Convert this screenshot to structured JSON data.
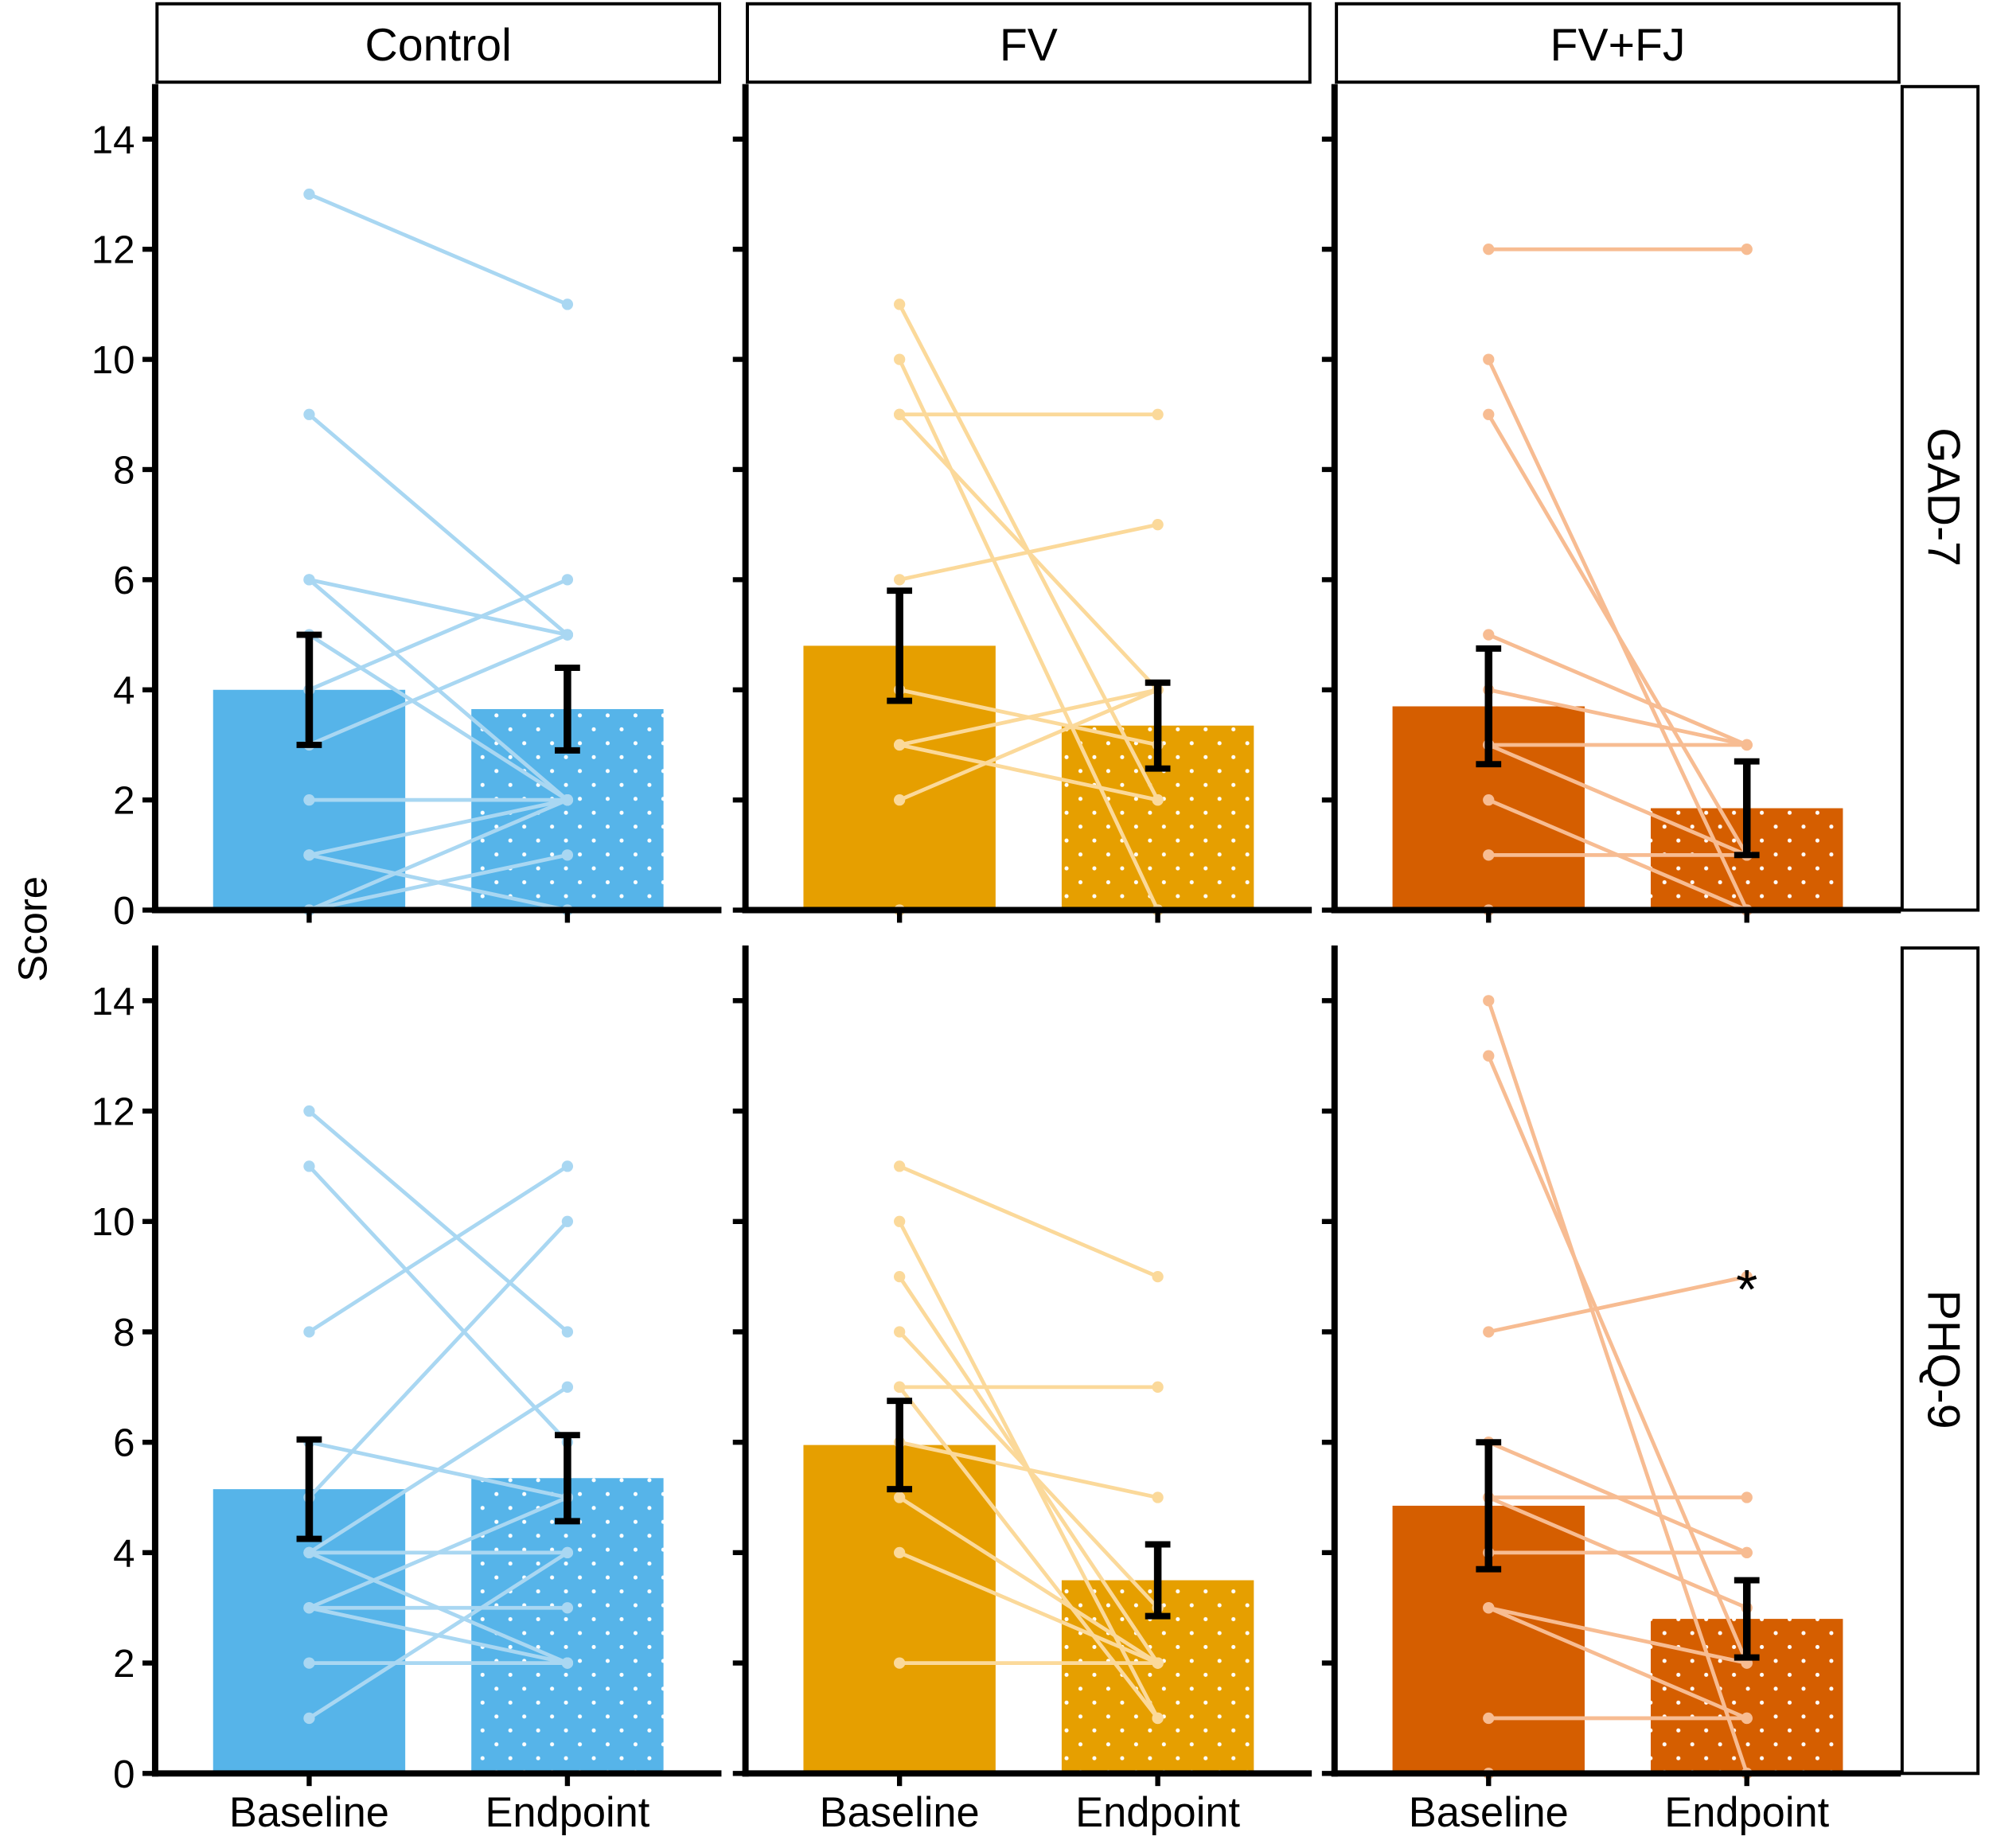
{
  "chart_data": {
    "type": "bar",
    "y_label": "Score",
    "categories": [
      "Baseline",
      "Endpoint"
    ],
    "columns": [
      "Control",
      "FV",
      "FV+FJ"
    ],
    "colors": [
      "#56B4E9",
      "#E69F00",
      "#D55E00"
    ],
    "line_colors": [
      "#a9d7f2",
      "#fbd99a",
      "#f7bc92"
    ],
    "ylim": [
      0,
      15
    ],
    "yticks": [
      0,
      2,
      4,
      6,
      8,
      10,
      12,
      14
    ],
    "rows": [
      {
        "name": "GAD-7",
        "panels": [
          {
            "values": [
              4.0,
              3.65
            ],
            "errors": [
              1.0,
              0.75
            ],
            "pairs": [
              [
                13,
                11
              ],
              [
                9,
                5
              ],
              [
                6,
                5
              ],
              [
                6,
                2
              ],
              [
                5,
                2
              ],
              [
                4,
                6
              ],
              [
                3,
                5
              ],
              [
                2,
                2
              ],
              [
                1,
                2
              ],
              [
                1,
                0
              ],
              [
                0,
                1
              ],
              [
                0,
                2
              ]
            ]
          },
          {
            "values": [
              4.8,
              3.35
            ],
            "errors": [
              1.0,
              0.78
            ],
            "pairs": [
              [
                11,
                2
              ],
              [
                10,
                0
              ],
              [
                9,
                9
              ],
              [
                9,
                4
              ],
              [
                6,
                7
              ],
              [
                4,
                3
              ],
              [
                3,
                4
              ],
              [
                3,
                2
              ],
              [
                2,
                4
              ],
              [
                0,
                0
              ]
            ]
          },
          {
            "values": [
              3.7,
              1.85
            ],
            "errors": [
              1.05,
              0.85
            ],
            "pairs": [
              [
                12,
                12
              ],
              [
                10,
                0
              ],
              [
                9,
                1
              ],
              [
                5,
                3
              ],
              [
                4,
                3
              ],
              [
                3,
                3
              ],
              [
                3,
                1
              ],
              [
                2,
                0
              ],
              [
                1,
                1
              ],
              [
                0,
                0
              ]
            ]
          }
        ]
      },
      {
        "name": "PHQ-9",
        "panels": [
          {
            "values": [
              5.15,
              5.35
            ],
            "errors": [
              0.9,
              0.78
            ],
            "pairs": [
              [
                12,
                8
              ],
              [
                11,
                6
              ],
              [
                8,
                11
              ],
              [
                6,
                5
              ],
              [
                5,
                10
              ],
              [
                4,
                7
              ],
              [
                4,
                4
              ],
              [
                4,
                2
              ],
              [
                3,
                5
              ],
              [
                3,
                3
              ],
              [
                3,
                2
              ],
              [
                2,
                2
              ],
              [
                1,
                4
              ]
            ]
          },
          {
            "values": [
              5.95,
              3.5
            ],
            "errors": [
              0.8,
              0.65
            ],
            "pairs": [
              [
                11,
                9
              ],
              [
                10,
                1
              ],
              [
                9,
                2
              ],
              [
                8,
                3
              ],
              [
                7,
                7
              ],
              [
                7,
                1
              ],
              [
                6,
                5
              ],
              [
                5,
                2
              ],
              [
                4,
                2
              ],
              [
                2,
                2
              ]
            ]
          },
          {
            "values": [
              4.85,
              2.8
            ],
            "errors": [
              1.15,
              0.7
            ],
            "pairs": [
              [
                14,
                0
              ],
              [
                13,
                2
              ],
              [
                8,
                9
              ],
              [
                6,
                4
              ],
              [
                5,
                5
              ],
              [
                5,
                3
              ],
              [
                4,
                4
              ],
              [
                3,
                1
              ],
              [
                3,
                2
              ],
              [
                1,
                1
              ],
              [
                0,
                0
              ]
            ],
            "annotation": "*"
          }
        ]
      }
    ]
  }
}
